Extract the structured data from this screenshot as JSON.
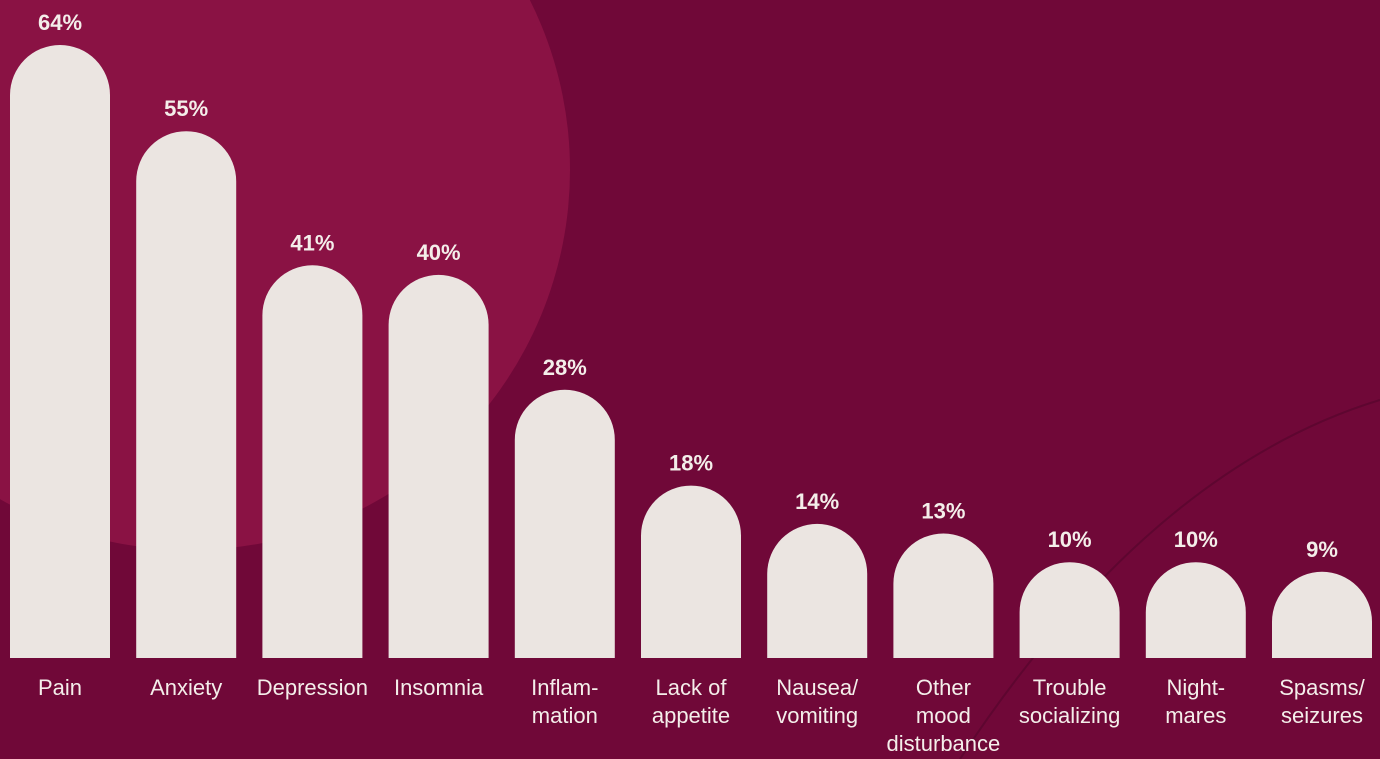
{
  "colors": {
    "background": "#700838",
    "circle": "#8a1244",
    "bar": "#ebe5e1",
    "text": "#f4eeea"
  },
  "chart_data": {
    "type": "bar",
    "title": "",
    "xlabel": "",
    "ylabel": "",
    "ylim": [
      0,
      64
    ],
    "grid": false,
    "categories": [
      [
        "Pain"
      ],
      [
        "Anxiety"
      ],
      [
        "Depression"
      ],
      [
        "Insomnia"
      ],
      [
        "Inflam-",
        "mation"
      ],
      [
        "Lack of",
        "appetite"
      ],
      [
        "Nausea/",
        "vomiting"
      ],
      [
        "Other",
        "mood",
        "disturbance"
      ],
      [
        "Trouble",
        "socializing"
      ],
      [
        "Night-",
        "mares"
      ],
      [
        "Spasms/",
        "seizures"
      ]
    ],
    "values": [
      64,
      55,
      41,
      40,
      28,
      18,
      14,
      13,
      10,
      10,
      9
    ],
    "value_labels": [
      "64%",
      "55%",
      "41%",
      "40%",
      "28%",
      "18%",
      "14%",
      "13%",
      "10%",
      "10%",
      "9%"
    ]
  }
}
